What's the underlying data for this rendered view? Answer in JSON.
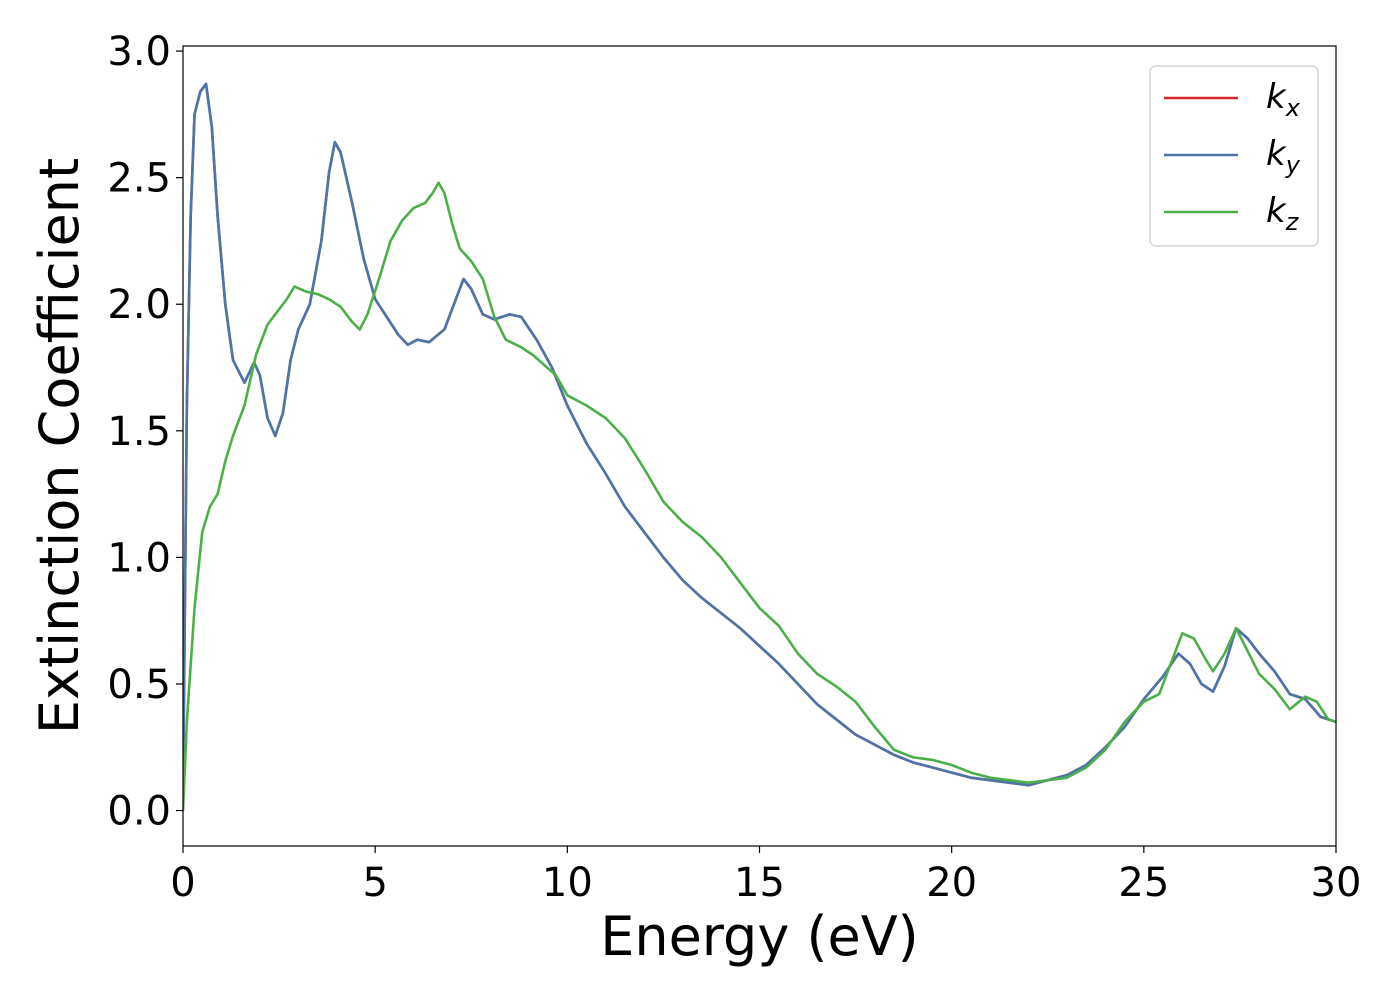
{
  "chart_data": {
    "type": "line",
    "title": "",
    "xlabel": "Energy (eV)",
    "ylabel": "Extinction Coefficient",
    "xlim": [
      0,
      30
    ],
    "ylim": [
      -0.14,
      3.02
    ],
    "xticks": [
      0,
      5,
      10,
      15,
      20,
      25,
      30
    ],
    "xtick_labels": [
      "0",
      "5",
      "10",
      "15",
      "20",
      "25",
      "30"
    ],
    "yticks": [
      0.0,
      0.5,
      1.0,
      1.5,
      2.0,
      2.5,
      3.0
    ],
    "ytick_labels": [
      "0.0",
      "0.5",
      "1.0",
      "1.5",
      "2.0",
      "2.5",
      "3.0"
    ],
    "grid": false,
    "legend_position": "top-right",
    "series": [
      {
        "name": "kx",
        "legend_base": "k",
        "legend_sub": "x",
        "color": "#d62728",
        "points": [
          [
            0,
            0.05
          ],
          [
            0.1,
            1.6
          ],
          [
            0.2,
            2.35
          ],
          [
            0.3,
            2.75
          ],
          [
            0.45,
            2.84
          ],
          [
            0.6,
            2.87
          ],
          [
            0.75,
            2.7
          ],
          [
            0.9,
            2.35
          ],
          [
            1.1,
            2.0
          ],
          [
            1.3,
            1.78
          ],
          [
            1.6,
            1.69
          ],
          [
            1.85,
            1.77
          ],
          [
            2.0,
            1.72
          ],
          [
            2.2,
            1.55
          ],
          [
            2.4,
            1.48
          ],
          [
            2.6,
            1.57
          ],
          [
            2.8,
            1.78
          ],
          [
            3.0,
            1.9
          ],
          [
            3.3,
            2.0
          ],
          [
            3.6,
            2.25
          ],
          [
            3.8,
            2.52
          ],
          [
            3.95,
            2.64
          ],
          [
            4.1,
            2.6
          ],
          [
            4.4,
            2.4
          ],
          [
            4.7,
            2.18
          ],
          [
            5.0,
            2.02
          ],
          [
            5.3,
            1.95
          ],
          [
            5.6,
            1.88
          ],
          [
            5.85,
            1.84
          ],
          [
            6.1,
            1.86
          ],
          [
            6.4,
            1.85
          ],
          [
            6.8,
            1.9
          ],
          [
            7.1,
            2.02
          ],
          [
            7.3,
            2.1
          ],
          [
            7.5,
            2.06
          ],
          [
            7.8,
            1.96
          ],
          [
            8.1,
            1.94
          ],
          [
            8.5,
            1.96
          ],
          [
            8.8,
            1.95
          ],
          [
            9.2,
            1.86
          ],
          [
            9.6,
            1.75
          ],
          [
            10.0,
            1.6
          ],
          [
            10.5,
            1.45
          ],
          [
            11.0,
            1.33
          ],
          [
            11.5,
            1.2
          ],
          [
            12.0,
            1.1
          ],
          [
            12.5,
            1.0
          ],
          [
            13.0,
            0.91
          ],
          [
            13.5,
            0.84
          ],
          [
            14.0,
            0.78
          ],
          [
            14.5,
            0.72
          ],
          [
            15.0,
            0.65
          ],
          [
            15.5,
            0.58
          ],
          [
            16.0,
            0.5
          ],
          [
            16.5,
            0.42
          ],
          [
            17.0,
            0.36
          ],
          [
            17.5,
            0.3
          ],
          [
            18.0,
            0.26
          ],
          [
            18.5,
            0.22
          ],
          [
            19.0,
            0.19
          ],
          [
            19.5,
            0.17
          ],
          [
            20.0,
            0.15
          ],
          [
            20.5,
            0.13
          ],
          [
            21.0,
            0.12
          ],
          [
            21.5,
            0.11
          ],
          [
            22.0,
            0.1
          ],
          [
            22.5,
            0.12
          ],
          [
            23.0,
            0.14
          ],
          [
            23.5,
            0.18
          ],
          [
            24.0,
            0.25
          ],
          [
            24.5,
            0.33
          ],
          [
            25.0,
            0.44
          ],
          [
            25.5,
            0.53
          ],
          [
            25.9,
            0.62
          ],
          [
            26.2,
            0.58
          ],
          [
            26.5,
            0.5
          ],
          [
            26.8,
            0.47
          ],
          [
            27.1,
            0.57
          ],
          [
            27.4,
            0.72
          ],
          [
            27.7,
            0.68
          ],
          [
            28.0,
            0.62
          ],
          [
            28.4,
            0.55
          ],
          [
            28.8,
            0.46
          ],
          [
            29.2,
            0.44
          ],
          [
            29.6,
            0.37
          ],
          [
            30.0,
            0.35
          ]
        ]
      },
      {
        "name": "ky",
        "legend_base": "k",
        "legend_sub": "y",
        "color": "#4a76aa",
        "points": [
          [
            0,
            0.05
          ],
          [
            0.1,
            1.6
          ],
          [
            0.2,
            2.35
          ],
          [
            0.3,
            2.75
          ],
          [
            0.45,
            2.84
          ],
          [
            0.6,
            2.87
          ],
          [
            0.75,
            2.7
          ],
          [
            0.9,
            2.35
          ],
          [
            1.1,
            2.0
          ],
          [
            1.3,
            1.78
          ],
          [
            1.6,
            1.69
          ],
          [
            1.85,
            1.77
          ],
          [
            2.0,
            1.72
          ],
          [
            2.2,
            1.55
          ],
          [
            2.4,
            1.48
          ],
          [
            2.6,
            1.57
          ],
          [
            2.8,
            1.78
          ],
          [
            3.0,
            1.9
          ],
          [
            3.3,
            2.0
          ],
          [
            3.6,
            2.25
          ],
          [
            3.8,
            2.52
          ],
          [
            3.95,
            2.64
          ],
          [
            4.1,
            2.6
          ],
          [
            4.4,
            2.4
          ],
          [
            4.7,
            2.18
          ],
          [
            5.0,
            2.02
          ],
          [
            5.3,
            1.95
          ],
          [
            5.6,
            1.88
          ],
          [
            5.85,
            1.84
          ],
          [
            6.1,
            1.86
          ],
          [
            6.4,
            1.85
          ],
          [
            6.8,
            1.9
          ],
          [
            7.1,
            2.02
          ],
          [
            7.3,
            2.1
          ],
          [
            7.5,
            2.06
          ],
          [
            7.8,
            1.96
          ],
          [
            8.1,
            1.94
          ],
          [
            8.5,
            1.96
          ],
          [
            8.8,
            1.95
          ],
          [
            9.2,
            1.86
          ],
          [
            9.6,
            1.75
          ],
          [
            10.0,
            1.6
          ],
          [
            10.5,
            1.45
          ],
          [
            11.0,
            1.33
          ],
          [
            11.5,
            1.2
          ],
          [
            12.0,
            1.1
          ],
          [
            12.5,
            1.0
          ],
          [
            13.0,
            0.91
          ],
          [
            13.5,
            0.84
          ],
          [
            14.0,
            0.78
          ],
          [
            14.5,
            0.72
          ],
          [
            15.0,
            0.65
          ],
          [
            15.5,
            0.58
          ],
          [
            16.0,
            0.5
          ],
          [
            16.5,
            0.42
          ],
          [
            17.0,
            0.36
          ],
          [
            17.5,
            0.3
          ],
          [
            18.0,
            0.26
          ],
          [
            18.5,
            0.22
          ],
          [
            19.0,
            0.19
          ],
          [
            19.5,
            0.17
          ],
          [
            20.0,
            0.15
          ],
          [
            20.5,
            0.13
          ],
          [
            21.0,
            0.12
          ],
          [
            21.5,
            0.11
          ],
          [
            22.0,
            0.1
          ],
          [
            22.5,
            0.12
          ],
          [
            23.0,
            0.14
          ],
          [
            23.5,
            0.18
          ],
          [
            24.0,
            0.25
          ],
          [
            24.5,
            0.33
          ],
          [
            25.0,
            0.44
          ],
          [
            25.5,
            0.53
          ],
          [
            25.9,
            0.62
          ],
          [
            26.2,
            0.58
          ],
          [
            26.5,
            0.5
          ],
          [
            26.8,
            0.47
          ],
          [
            27.1,
            0.57
          ],
          [
            27.4,
            0.72
          ],
          [
            27.7,
            0.68
          ],
          [
            28.0,
            0.62
          ],
          [
            28.4,
            0.55
          ],
          [
            28.8,
            0.46
          ],
          [
            29.2,
            0.44
          ],
          [
            29.6,
            0.37
          ],
          [
            30.0,
            0.35
          ]
        ]
      },
      {
        "name": "kz",
        "legend_base": "k",
        "legend_sub": "z",
        "color": "#4daf4a",
        "points": [
          [
            0,
            0.0
          ],
          [
            0.1,
            0.35
          ],
          [
            0.3,
            0.8
          ],
          [
            0.5,
            1.1
          ],
          [
            0.7,
            1.2
          ],
          [
            0.9,
            1.25
          ],
          [
            1.1,
            1.38
          ],
          [
            1.3,
            1.48
          ],
          [
            1.6,
            1.6
          ],
          [
            1.9,
            1.8
          ],
          [
            2.2,
            1.92
          ],
          [
            2.5,
            1.98
          ],
          [
            2.7,
            2.02
          ],
          [
            2.9,
            2.07
          ],
          [
            3.2,
            2.05
          ],
          [
            3.5,
            2.04
          ],
          [
            3.8,
            2.02
          ],
          [
            4.1,
            1.99
          ],
          [
            4.4,
            1.93
          ],
          [
            4.6,
            1.9
          ],
          [
            4.8,
            1.96
          ],
          [
            5.1,
            2.1
          ],
          [
            5.4,
            2.25
          ],
          [
            5.7,
            2.33
          ],
          [
            6.0,
            2.38
          ],
          [
            6.3,
            2.4
          ],
          [
            6.5,
            2.44
          ],
          [
            6.65,
            2.48
          ],
          [
            6.8,
            2.44
          ],
          [
            7.0,
            2.32
          ],
          [
            7.2,
            2.22
          ],
          [
            7.5,
            2.17
          ],
          [
            7.8,
            2.1
          ],
          [
            8.1,
            1.95
          ],
          [
            8.4,
            1.86
          ],
          [
            8.8,
            1.83
          ],
          [
            9.1,
            1.8
          ],
          [
            9.4,
            1.76
          ],
          [
            9.7,
            1.72
          ],
          [
            10.0,
            1.64
          ],
          [
            10.5,
            1.6
          ],
          [
            11.0,
            1.55
          ],
          [
            11.5,
            1.47
          ],
          [
            12.0,
            1.35
          ],
          [
            12.5,
            1.22
          ],
          [
            13.0,
            1.14
          ],
          [
            13.5,
            1.08
          ],
          [
            14.0,
            1.0
          ],
          [
            14.5,
            0.9
          ],
          [
            15.0,
            0.8
          ],
          [
            15.5,
            0.73
          ],
          [
            16.0,
            0.62
          ],
          [
            16.5,
            0.54
          ],
          [
            17.0,
            0.49
          ],
          [
            17.5,
            0.43
          ],
          [
            18.0,
            0.33
          ],
          [
            18.5,
            0.24
          ],
          [
            19.0,
            0.21
          ],
          [
            19.5,
            0.2
          ],
          [
            20.0,
            0.18
          ],
          [
            20.5,
            0.15
          ],
          [
            21.0,
            0.13
          ],
          [
            21.5,
            0.12
          ],
          [
            22.0,
            0.11
          ],
          [
            22.5,
            0.12
          ],
          [
            23.0,
            0.13
          ],
          [
            23.5,
            0.17
          ],
          [
            24.0,
            0.24
          ],
          [
            24.5,
            0.35
          ],
          [
            25.0,
            0.43
          ],
          [
            25.4,
            0.46
          ],
          [
            25.7,
            0.58
          ],
          [
            26.0,
            0.7
          ],
          [
            26.3,
            0.68
          ],
          [
            26.6,
            0.6
          ],
          [
            26.8,
            0.55
          ],
          [
            27.1,
            0.62
          ],
          [
            27.4,
            0.72
          ],
          [
            27.7,
            0.63
          ],
          [
            28.0,
            0.54
          ],
          [
            28.4,
            0.48
          ],
          [
            28.8,
            0.4
          ],
          [
            29.2,
            0.45
          ],
          [
            29.5,
            0.43
          ],
          [
            29.8,
            0.36
          ],
          [
            30.0,
            0.35
          ]
        ]
      }
    ]
  }
}
